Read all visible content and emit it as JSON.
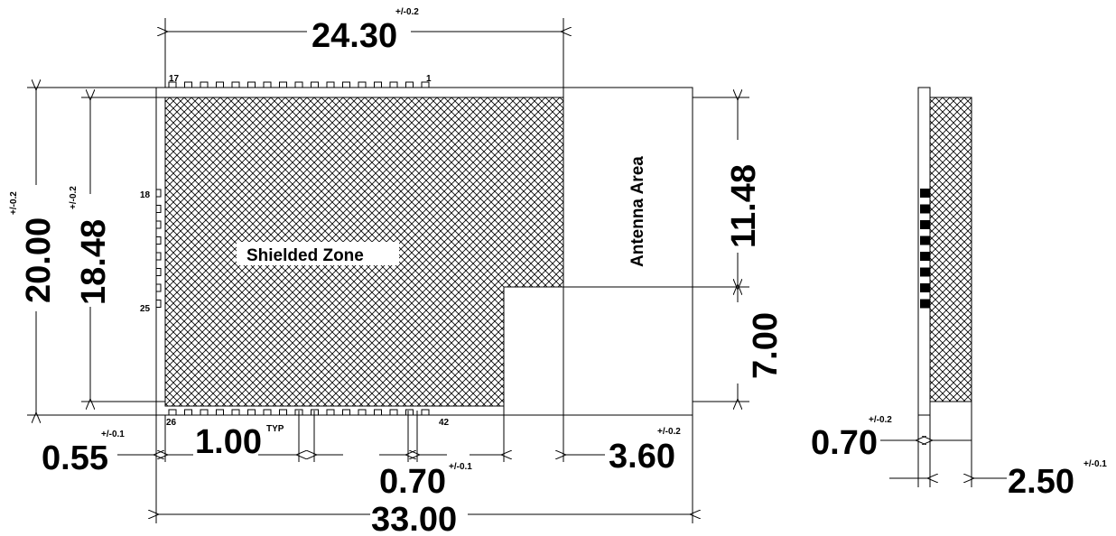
{
  "dimensions": {
    "shield_width": {
      "value": "24.30",
      "tolerance": "+/-0.2"
    },
    "module_height": {
      "value": "20.00",
      "tolerance": "+/-0.2"
    },
    "shield_height": {
      "value": "18.48",
      "tolerance": "+/-0.2"
    },
    "antenna_upper": {
      "value": "11.48"
    },
    "antenna_lower": {
      "value": "7.00"
    },
    "edge_offset": {
      "value": "0.55",
      "tolerance": "+/-0.1"
    },
    "pitch": {
      "value": "1.00",
      "note": "TYP"
    },
    "pad_width": {
      "value": "0.70",
      "tolerance": "+/-0.1"
    },
    "antenna_width": {
      "value": "3.60",
      "tolerance": "+/-0.2"
    },
    "module_width": {
      "value": "33.00"
    },
    "side_pad": {
      "value": "0.70",
      "tolerance": "+/-0.2"
    },
    "thickness": {
      "value": "2.50",
      "tolerance": "+/-0.1"
    }
  },
  "labels": {
    "shielded_zone": "Shielded Zone",
    "antenna_area": "Antenna Area"
  },
  "pins": {
    "top_left": "17",
    "top_right": "1",
    "left_top": "18",
    "left_bottom": "25",
    "bottom_left": "26",
    "bottom_right": "42"
  }
}
